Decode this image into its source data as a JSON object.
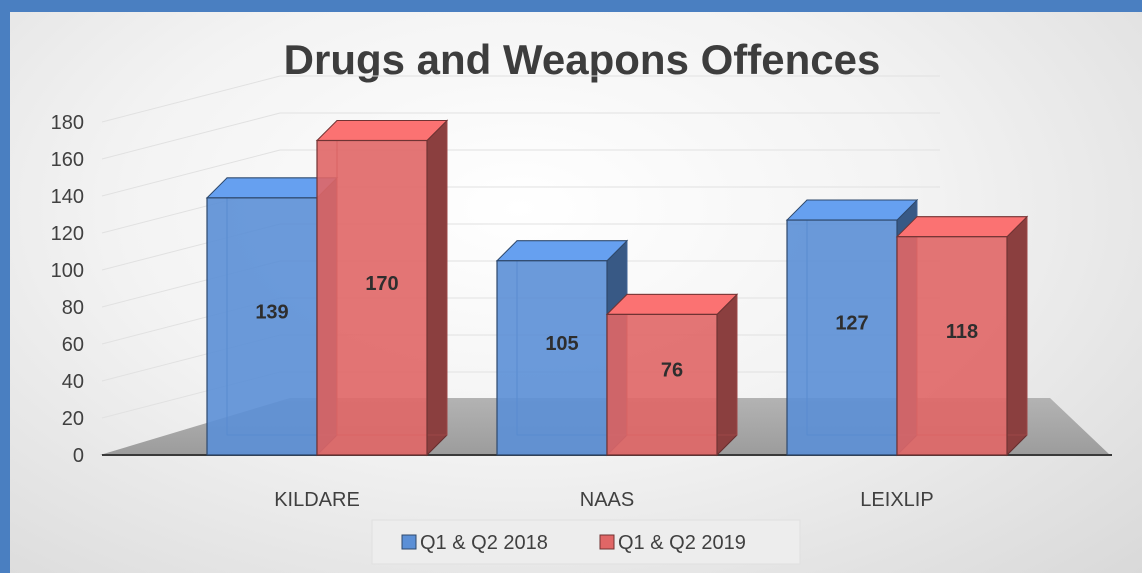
{
  "chart_data": {
    "type": "bar",
    "title": "Drugs and Weapons Offences",
    "categories": [
      "KILDARE",
      "NAAS",
      "LEIXLIP"
    ],
    "series": [
      {
        "name": "Q1 & Q2 2018",
        "values": [
          139,
          105,
          127
        ],
        "color": "#5b8fd6"
      },
      {
        "name": "Q1 & Q2 2019",
        "values": [
          170,
          76,
          118
        ],
        "color": "#e06666"
      }
    ],
    "ylim": [
      0,
      180
    ],
    "yticks": [
      0,
      20,
      40,
      60,
      80,
      100,
      120,
      140,
      160,
      180
    ],
    "grid": true,
    "legend": "bottom"
  }
}
